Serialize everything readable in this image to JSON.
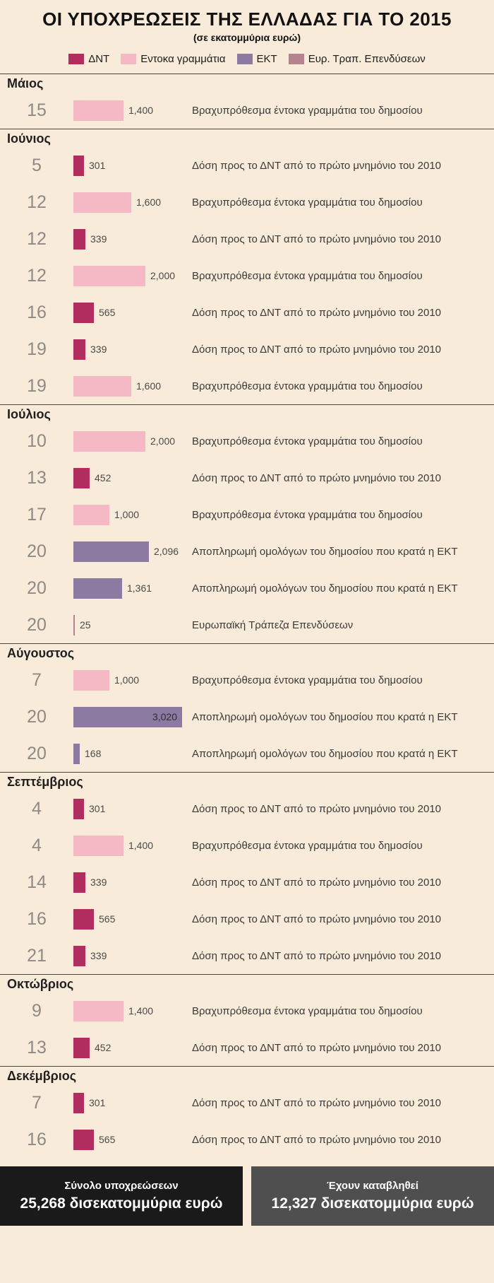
{
  "title": "ΟΙ ΥΠΟΧΡΕΩΣΕΙΣ ΤΗΣ ΕΛΛΑΔΑΣ ΓΙΑ ΤΟ 2015",
  "subtitle": "(σε εκατομμύρια ευρώ)",
  "colors": {
    "background": "#f8ebd9",
    "imf": "#b12d5f",
    "tbills": "#f4b9c4",
    "ecb": "#8d7aa3",
    "eib": "#b5828e",
    "footer_total_bg": "#1a1a1a",
    "footer_paid_bg": "#4f4f4f"
  },
  "legend": [
    {
      "key": "imf",
      "label": "ΔΝΤ",
      "color": "#b12d5f"
    },
    {
      "key": "tbills",
      "label": "Εντοκα γραμμάτια",
      "color": "#f4b9c4"
    },
    {
      "key": "ecb",
      "label": "ΕΚΤ",
      "color": "#8d7aa3"
    },
    {
      "key": "eib",
      "label": "Ευρ. Τραπ. Επενδύσεων",
      "color": "#b5828e"
    }
  ],
  "chart_data": {
    "type": "bar",
    "orientation": "horizontal",
    "unit": "εκατομμύρια ευρώ",
    "value_range": [
      0,
      3020
    ],
    "groups": [
      {
        "month": "Μάιος",
        "rows": [
          {
            "day": "15",
            "series": "tbills",
            "value": 1400,
            "label": "1,400",
            "desc": "Βραχυπρόθεσμα έντοκα γραμμάτια του δημοσίου"
          }
        ]
      },
      {
        "month": "Ιούνιος",
        "rows": [
          {
            "day": "5",
            "series": "imf",
            "value": 301,
            "label": "301",
            "desc": "Δόση προς το ΔΝΤ από το πρώτο μνημόνιο του 2010"
          },
          {
            "day": "12",
            "series": "tbills",
            "value": 1600,
            "label": "1,600",
            "desc": "Βραχυπρόθεσμα έντοκα γραμμάτια του δημοσίου"
          },
          {
            "day": "12",
            "series": "imf",
            "value": 339,
            "label": "339",
            "desc": "Δόση προς το ΔΝΤ από το πρώτο μνημόνιο του 2010"
          },
          {
            "day": "12",
            "series": "tbills",
            "value": 2000,
            "label": "2,000",
            "desc": "Βραχυπρόθεσμα έντοκα γραμμάτια του δημοσίου"
          },
          {
            "day": "16",
            "series": "imf",
            "value": 565,
            "label": "565",
            "desc": "Δόση προς το ΔΝΤ από το πρώτο μνημόνιο του 2010"
          },
          {
            "day": "19",
            "series": "imf",
            "value": 339,
            "label": "339",
            "desc": "Δόση προς το ΔΝΤ από το πρώτο μνημόνιο του 2010"
          },
          {
            "day": "19",
            "series": "tbills",
            "value": 1600,
            "label": "1,600",
            "desc": "Βραχυπρόθεσμα έντοκα γραμμάτια του δημοσίου"
          }
        ]
      },
      {
        "month": "Ιούλιος",
        "rows": [
          {
            "day": "10",
            "series": "tbills",
            "value": 2000,
            "label": "2,000",
            "desc": "Βραχυπρόθεσμα έντοκα γραμμάτια του δημοσίου"
          },
          {
            "day": "13",
            "series": "imf",
            "value": 452,
            "label": "452",
            "desc": "Δόση προς το ΔΝΤ από το πρώτο μνημόνιο του 2010"
          },
          {
            "day": "17",
            "series": "tbills",
            "value": 1000,
            "label": "1,000",
            "desc": "Βραχυπρόθεσμα έντοκα γραμμάτια του δημοσίου"
          },
          {
            "day": "20",
            "series": "ecb",
            "value": 2096,
            "label": "2,096",
            "desc": "Αποπληρωμή ομολόγων του δημοσίου που κρατά η ΕΚΤ"
          },
          {
            "day": "20",
            "series": "ecb",
            "value": 1361,
            "label": "1,361",
            "desc": "Αποπληρωμή ομολόγων του δημοσίου που κρατά η ΕΚΤ"
          },
          {
            "day": "20",
            "series": "eib",
            "value": 25,
            "label": "25",
            "desc": "Ευρωπαϊκή Τράπεζα Επενδύσεων"
          }
        ]
      },
      {
        "month": "Αύγουστος",
        "rows": [
          {
            "day": "7",
            "series": "tbills",
            "value": 1000,
            "label": "1,000",
            "desc": "Βραχυπρόθεσμα έντοκα γραμμάτια του δημοσίου"
          },
          {
            "day": "20",
            "series": "ecb",
            "value": 3020,
            "label": "3,020",
            "label_inside": true,
            "desc": "Αποπληρωμή ομολόγων του δημοσίου που κρατά η ΕΚΤ"
          },
          {
            "day": "20",
            "series": "ecb",
            "value": 168,
            "label": "168",
            "desc": "Αποπληρωμή ομολόγων του δημοσίου που κρατά η ΕΚΤ"
          }
        ]
      },
      {
        "month": "Σεπτέμβριος",
        "rows": [
          {
            "day": "4",
            "series": "imf",
            "value": 301,
            "label": "301",
            "desc": "Δόση προς το ΔΝΤ από το πρώτο μνημόνιο του 2010"
          },
          {
            "day": "4",
            "series": "tbills",
            "value": 1400,
            "label": "1,400",
            "desc": "Βραχυπρόθεσμα έντοκα γραμμάτια του δημοσίου"
          },
          {
            "day": "14",
            "series": "imf",
            "value": 339,
            "label": "339",
            "desc": "Δόση προς το ΔΝΤ από το πρώτο μνημόνιο του 2010"
          },
          {
            "day": "16",
            "series": "imf",
            "value": 565,
            "label": "565",
            "desc": "Δόση προς το ΔΝΤ από το πρώτο μνημόνιο του 2010"
          },
          {
            "day": "21",
            "series": "imf",
            "value": 339,
            "label": "339",
            "desc": "Δόση προς το ΔΝΤ από το πρώτο μνημόνιο του 2010"
          }
        ]
      },
      {
        "month": "Οκτώβριος",
        "rows": [
          {
            "day": "9",
            "series": "tbills",
            "value": 1400,
            "label": "1,400",
            "desc": "Βραχυπρόθεσμα έντοκα γραμμάτια του δημοσίου"
          },
          {
            "day": "13",
            "series": "imf",
            "value": 452,
            "label": "452",
            "desc": "Δόση προς το ΔΝΤ από το πρώτο μνημόνιο του 2010"
          }
        ]
      },
      {
        "month": "Δεκέμβριος",
        "rows": [
          {
            "day": "7",
            "series": "imf",
            "value": 301,
            "label": "301",
            "desc": "Δόση προς το ΔΝΤ από το πρώτο μνημόνιο του 2010"
          },
          {
            "day": "16",
            "series": "imf",
            "value": 565,
            "label": "565",
            "desc": "Δόση προς το ΔΝΤ από το πρώτο μνημόνιο του 2010"
          }
        ]
      }
    ]
  },
  "footer": {
    "total_label": "Σύνολο υποχρεώσεων",
    "total_value": "25,268 δισεκατομμύρια ευρώ",
    "paid_label": "Έχουν καταβληθεί",
    "paid_value": "12,327 δισεκατομμύρια ευρώ"
  }
}
